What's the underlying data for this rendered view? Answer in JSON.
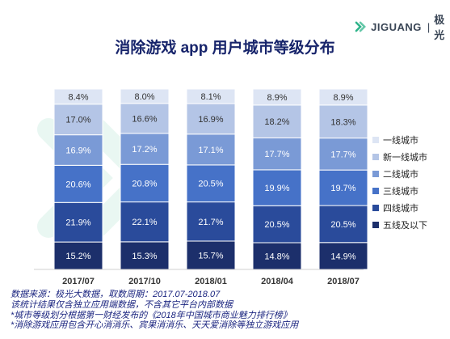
{
  "logo": {
    "brand": "JIGUANG",
    "cn": "极光"
  },
  "chart_data": {
    "type": "bar",
    "stacked": true,
    "title": "消除游戏 app 用户城市等级分布",
    "categories": [
      "2017/07",
      "2017/10",
      "2018/01",
      "2018/04",
      "2018/07"
    ],
    "ylim": [
      0,
      100
    ],
    "grid": false,
    "legend_position": "right",
    "series": [
      {
        "name": "五线及以下",
        "color": "#1c2f6b",
        "values": [
          15.2,
          15.3,
          15.7,
          14.8,
          14.9
        ],
        "labels": [
          "15.2%",
          "15.3%",
          "15.7%",
          "14.8%",
          "14.9%"
        ]
      },
      {
        "name": "四线城市",
        "color": "#2a4b9b",
        "values": [
          21.9,
          22.1,
          21.7,
          20.5,
          20.5
        ],
        "labels": [
          "21.9%",
          "22.1%",
          "21.7%",
          "20.5%",
          "20.5%"
        ]
      },
      {
        "name": "三线城市",
        "color": "#4672c8",
        "values": [
          20.6,
          20.8,
          20.5,
          19.9,
          19.7
        ],
        "labels": [
          "20.6%",
          "20.8%",
          "20.5%",
          "19.9%",
          "19.7%"
        ]
      },
      {
        "name": "二线城市",
        "color": "#7a9ad6",
        "values": [
          16.9,
          17.2,
          17.1,
          17.7,
          17.7
        ],
        "labels": [
          "16.9%",
          "17.2%",
          "17.1%",
          "17.7%",
          "17.7%"
        ]
      },
      {
        "name": "新一线城市",
        "color": "#b4c5e6",
        "values": [
          17.0,
          16.6,
          16.9,
          18.2,
          18.3
        ],
        "labels": [
          "17.0%",
          "16.6%",
          "16.9%",
          "18.2%",
          "18.3%"
        ]
      },
      {
        "name": "一线城市",
        "color": "#dde5f4",
        "values": [
          8.4,
          8.0,
          8.1,
          8.9,
          8.9
        ],
        "labels": [
          "8.4%",
          "8.0%",
          "8.1%",
          "8.9%",
          "8.9%"
        ]
      }
    ]
  },
  "legend_order": [
    5,
    4,
    3,
    2,
    1,
    0
  ],
  "footnotes": [
    "数据来源：极光大数据，取数周期：2017.07-2018.07",
    "该统计结果仅含独立应用端数据，不含其它平台内部数据",
    "*城市等级划分根据第一财经发布的《2018年中国城市商业魅力排行榜》",
    "*消除游戏应用包含开心消消乐、宾果消消乐、天天爱消除等独立游戏应用"
  ]
}
